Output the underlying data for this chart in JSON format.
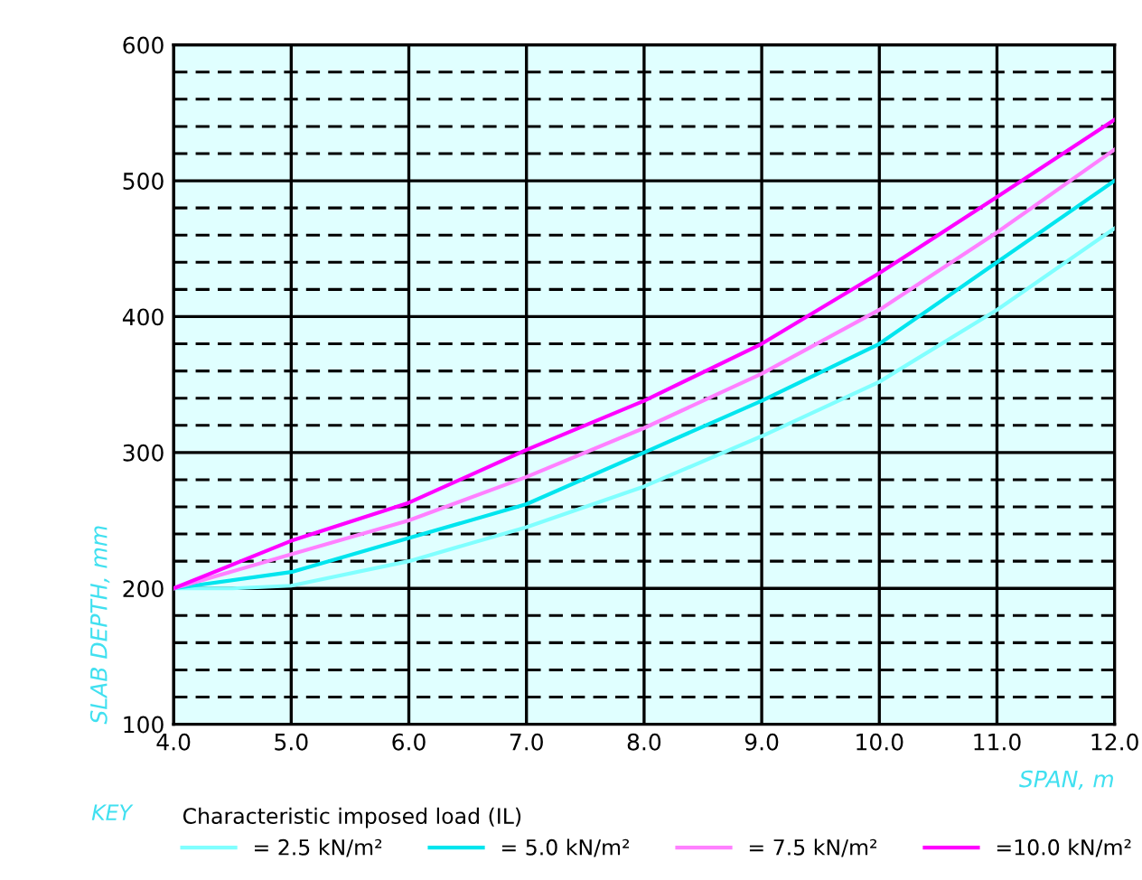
{
  "chart_data": {
    "type": "line",
    "xlabel": "SPAN, m",
    "ylabel": "SLAB DEPTH, mm",
    "legend_title": "Characteristic imposed load (IL)",
    "annotations": [
      "KEY"
    ],
    "xlim": [
      4.0,
      12.0
    ],
    "xticks": [
      {
        "value": 4,
        "label": "4.0"
      },
      {
        "value": 5,
        "label": "5.0"
      },
      {
        "value": 6,
        "label": "6.0"
      },
      {
        "value": 7,
        "label": "7.0"
      },
      {
        "value": 8,
        "label": "8.0"
      },
      {
        "value": 9,
        "label": "9.0"
      },
      {
        "value": 10,
        "label": "10.0"
      },
      {
        "value": 11,
        "label": "11.0"
      },
      {
        "value": 12,
        "label": "12.0"
      }
    ],
    "ylim": [
      100,
      600
    ],
    "yticks": [
      100,
      {
        "value": 120,
        "label": null
      },
      {
        "value": 140,
        "label": null
      },
      {
        "value": 160,
        "label": null
      },
      {
        "value": 180,
        "label": null
      },
      200,
      {
        "value": 220,
        "label": null
      },
      {
        "value": 240,
        "label": null
      },
      {
        "value": 260,
        "label": null
      },
      {
        "value": 280,
        "label": null
      },
      300,
      {
        "value": 320,
        "label": null
      },
      {
        "value": 340,
        "label": null
      },
      {
        "value": 360,
        "label": null
      },
      {
        "value": 380,
        "label": null
      },
      400,
      {
        "value": 420,
        "label": null
      },
      {
        "value": 440,
        "label": null
      },
      {
        "value": 460,
        "label": null
      },
      {
        "value": 480,
        "label": null
      },
      500,
      {
        "value": 520,
        "label": null
      },
      {
        "value": 540,
        "label": null
      },
      {
        "value": 560,
        "label": null
      },
      {
        "value": 580,
        "label": null
      },
      600
    ],
    "grid": true,
    "legend": "bottom",
    "series": [
      {
        "name": "= 2.5 kN/m²",
        "color": "#80ffff",
        "x": [
          4,
          4.5,
          5,
          6,
          7,
          8,
          9,
          10,
          11,
          12
        ],
        "values": [
          200,
          200,
          202,
          220,
          245,
          275,
          312,
          352,
          405,
          465
        ]
      },
      {
        "name": "= 5.0 kN/m²",
        "color": "#00e5ee",
        "x": [
          4,
          5,
          6,
          7,
          8,
          9,
          10,
          11,
          12
        ],
        "values": [
          200,
          212,
          237,
          262,
          300,
          338,
          380,
          440,
          500
        ]
      },
      {
        "name": "= 7.5 kN/m²",
        "color": "#ff80ff",
        "x": [
          4,
          5,
          6,
          7,
          8,
          9,
          10,
          11,
          12
        ],
        "values": [
          200,
          225,
          250,
          282,
          318,
          358,
          405,
          462,
          523
        ]
      },
      {
        "name": "=10.0 kN/m²",
        "color": "#ff00ff",
        "x": [
          4,
          5,
          6,
          7,
          8,
          9,
          10,
          11,
          12
        ],
        "values": [
          200,
          235,
          263,
          302,
          338,
          380,
          432,
          488,
          545
        ]
      }
    ]
  }
}
